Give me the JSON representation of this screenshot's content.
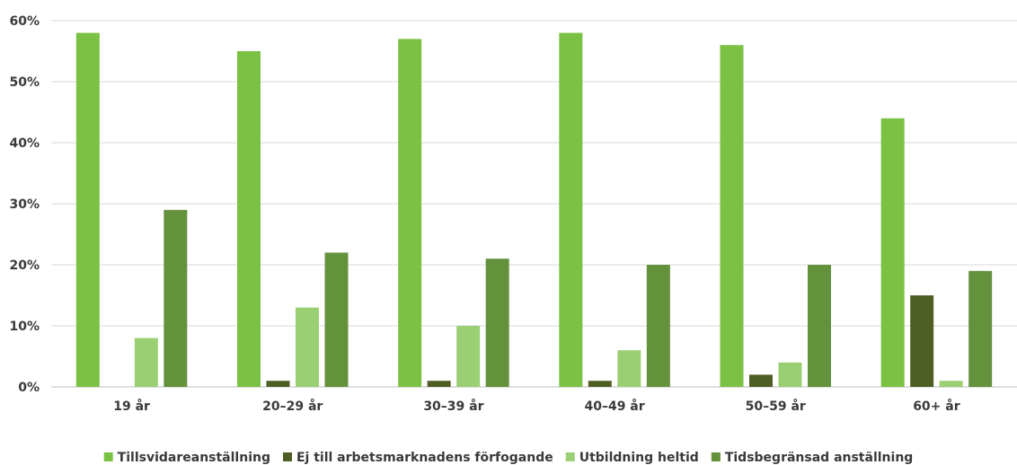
{
  "chart_data": {
    "type": "bar",
    "categories": [
      "19 år",
      "20–29 år",
      "30–39 år",
      "40–49 år",
      "50–59 år",
      "60+ år"
    ],
    "series": [
      {
        "name": "Tillsvidareanställning",
        "color": "#7bc143",
        "values": [
          58,
          55,
          57,
          58,
          56,
          44
        ]
      },
      {
        "name": "Ej till arbetsmarknadens förfogande",
        "color": "#4e5f26",
        "values": [
          0,
          1,
          1,
          1,
          2,
          15
        ]
      },
      {
        "name": "Utbildning heltid",
        "color": "#9bcf73",
        "values": [
          8,
          13,
          10,
          6,
          4,
          1
        ]
      },
      {
        "name": "Tidsbegränsad anställning",
        "color": "#63913c",
        "values": [
          29,
          22,
          21,
          20,
          20,
          19
        ]
      }
    ],
    "ylim": [
      0,
      60
    ],
    "yticks": [
      "0%",
      "10%",
      "20%",
      "30%",
      "40%",
      "50%",
      "60%"
    ],
    "ytick_values": [
      0,
      10,
      20,
      30,
      40,
      50,
      60
    ],
    "grid": true,
    "legend_position": "bottom"
  }
}
